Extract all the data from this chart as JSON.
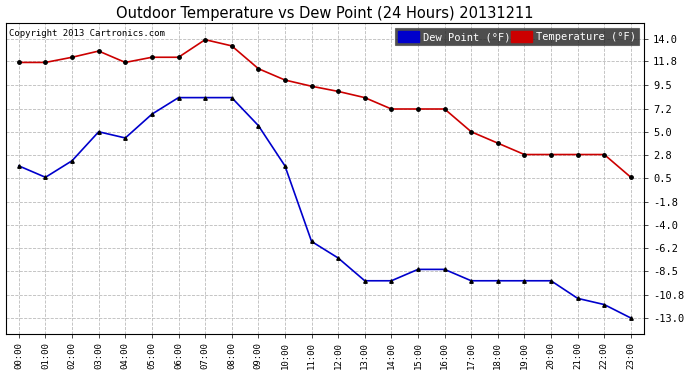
{
  "title": "Outdoor Temperature vs Dew Point (24 Hours) 20131211",
  "copyright": "Copyright 2013 Cartronics.com",
  "hours": [
    "00:00",
    "01:00",
    "02:00",
    "03:00",
    "04:00",
    "05:00",
    "06:00",
    "07:00",
    "08:00",
    "09:00",
    "10:00",
    "11:00",
    "12:00",
    "13:00",
    "14:00",
    "15:00",
    "16:00",
    "17:00",
    "18:00",
    "19:00",
    "20:00",
    "21:00",
    "22:00",
    "23:00"
  ],
  "temperature": [
    11.7,
    11.7,
    12.2,
    12.8,
    11.7,
    12.2,
    12.2,
    13.9,
    13.3,
    11.1,
    10.0,
    9.4,
    8.9,
    8.3,
    7.2,
    7.2,
    7.2,
    5.0,
    3.9,
    2.8,
    2.8,
    2.8,
    2.8,
    0.6
  ],
  "dew_point": [
    1.7,
    0.6,
    2.2,
    5.0,
    4.4,
    6.7,
    8.3,
    8.3,
    8.3,
    5.6,
    1.7,
    -5.6,
    -7.2,
    -9.4,
    -9.4,
    -8.3,
    -8.3,
    -9.4,
    -9.4,
    -9.4,
    -9.4,
    -11.1,
    -11.7,
    -13.0
  ],
  "y_ticks": [
    14.0,
    11.8,
    9.5,
    7.2,
    5.0,
    2.8,
    0.5,
    -1.8,
    -4.0,
    -6.2,
    -8.5,
    -10.8,
    -13.0
  ],
  "ylim": [
    -14.5,
    15.5
  ],
  "temp_color": "#cc0000",
  "dew_color": "#0000cc",
  "marker_color": "#000000",
  "background_color": "#ffffff",
  "grid_color": "#bbbbbb",
  "legend_dew_bg": "#0000cc",
  "legend_temp_bg": "#cc0000",
  "legend_text_color": "#ffffff"
}
